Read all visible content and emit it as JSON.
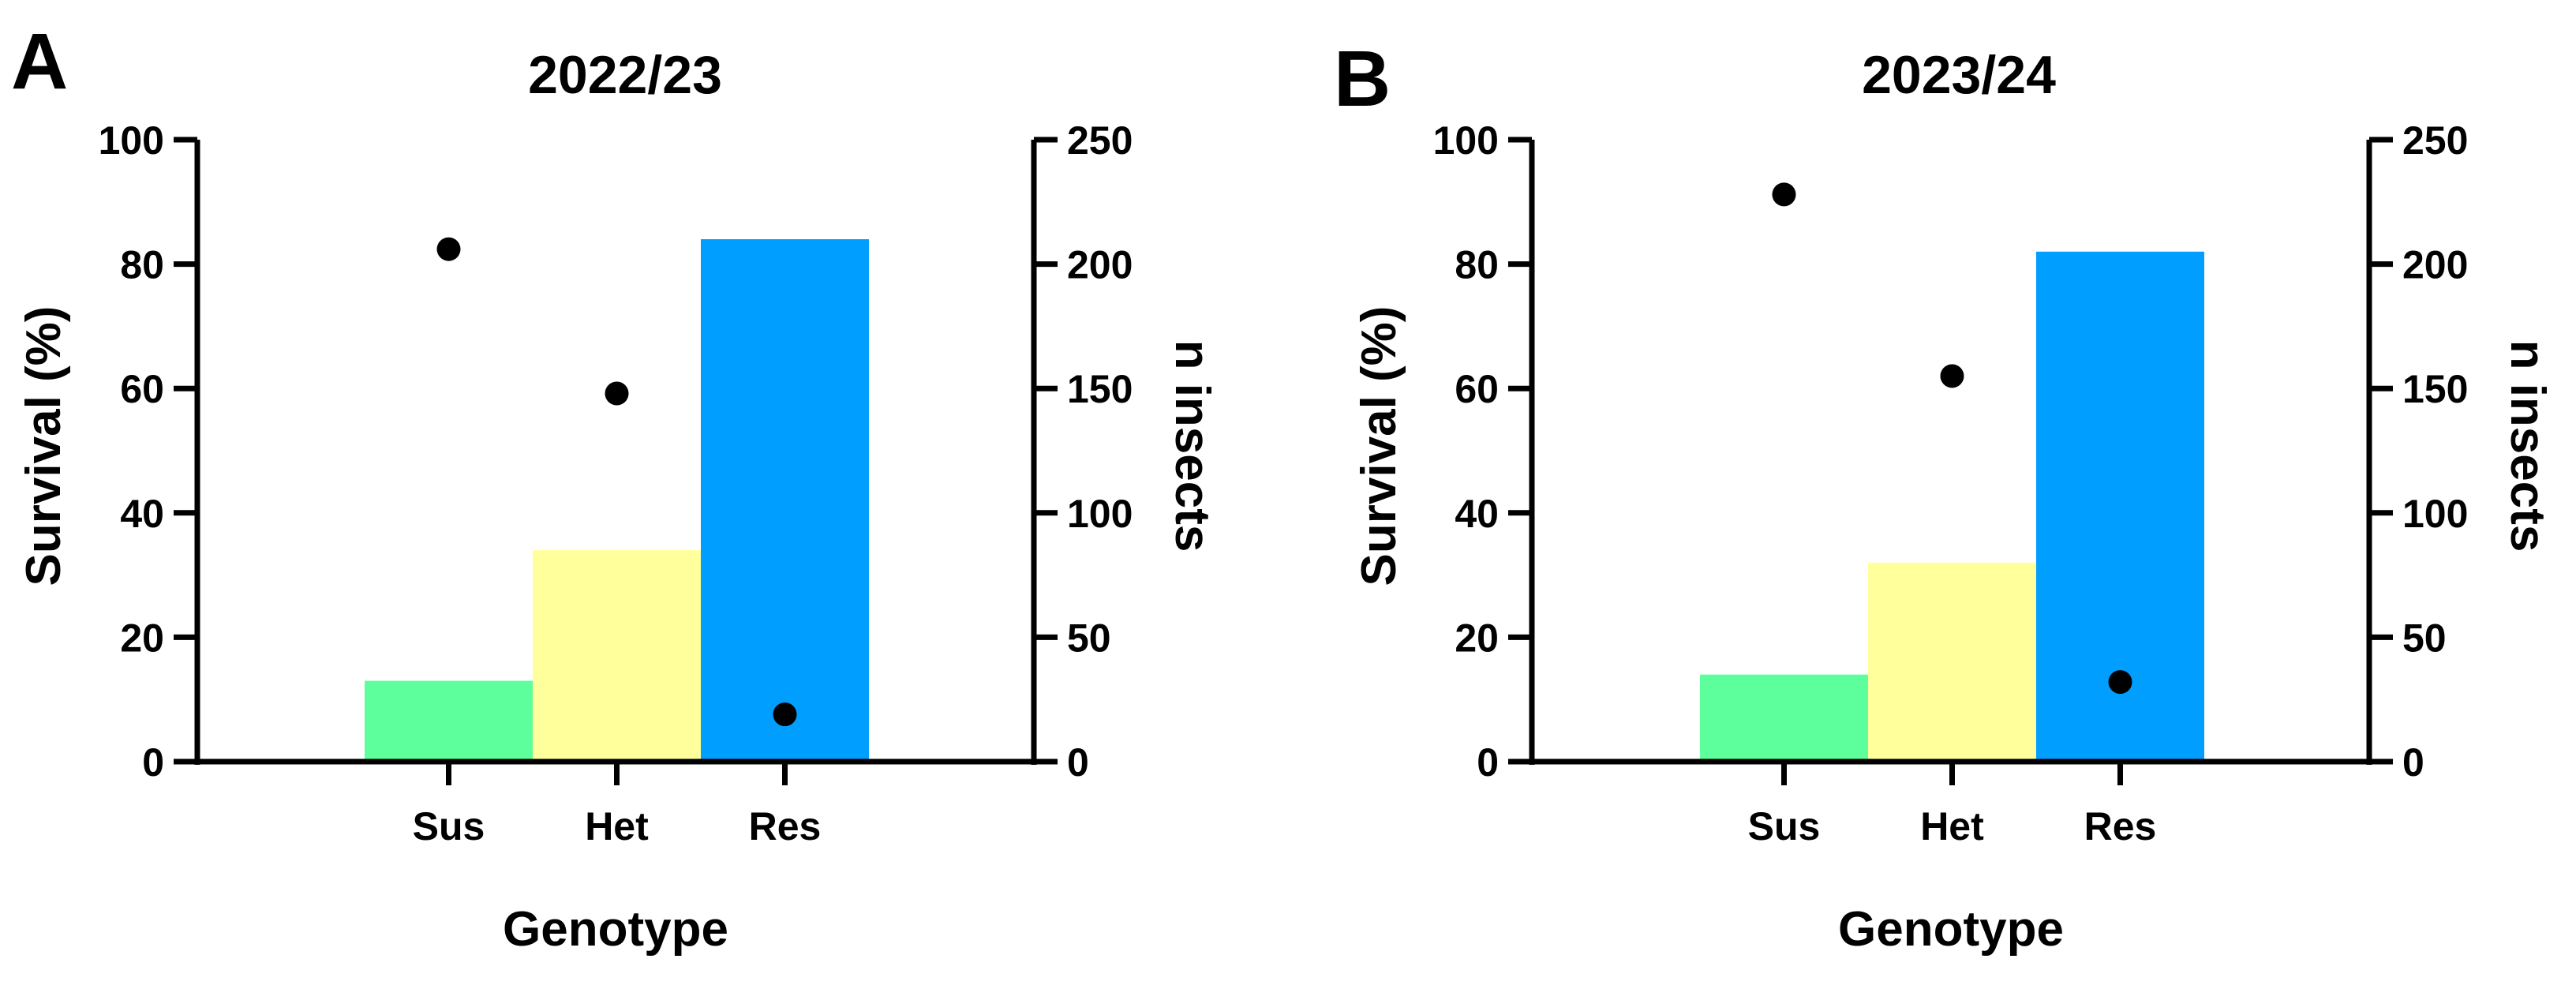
{
  "chart_data": [
    {
      "panel_letter": "A",
      "type": "bar",
      "title": "2022/23",
      "xlabel": "Genotype",
      "ylabel": "Survival (%)",
      "y2label": "n insects",
      "categories": [
        "Sus",
        "Het",
        "Res"
      ],
      "bar_colors": [
        "#5cff9b",
        "#ffff9c",
        "#009fff"
      ],
      "ylim": [
        0,
        100
      ],
      "yticks": [
        "0",
        "20",
        "40",
        "60",
        "80",
        "100"
      ],
      "y2lim": [
        0,
        250
      ],
      "y2ticks": [
        "0",
        "50",
        "100",
        "150",
        "200",
        "250"
      ],
      "series": [
        {
          "type": "bar",
          "axis": "left",
          "values": [
            13,
            34,
            84
          ]
        },
        {
          "type": "scatter",
          "axis": "right",
          "values": [
            206,
            148,
            19
          ]
        }
      ]
    },
    {
      "panel_letter": "B",
      "type": "bar",
      "title": "2023/24",
      "xlabel": "Genotype",
      "ylabel": "Survival (%)",
      "y2label": "n insects",
      "categories": [
        "Sus",
        "Het",
        "Res"
      ],
      "bar_colors": [
        "#5cff9b",
        "#ffff9c",
        "#009fff"
      ],
      "ylim": [
        0,
        100
      ],
      "yticks": [
        "0",
        "20",
        "40",
        "60",
        "80",
        "100"
      ],
      "y2lim": [
        0,
        250
      ],
      "y2ticks": [
        "0",
        "50",
        "100",
        "150",
        "200",
        "250"
      ],
      "series": [
        {
          "type": "bar",
          "axis": "left",
          "values": [
            14,
            32,
            82
          ]
        },
        {
          "type": "scatter",
          "axis": "right",
          "values": [
            228,
            155,
            32
          ]
        }
      ]
    }
  ]
}
